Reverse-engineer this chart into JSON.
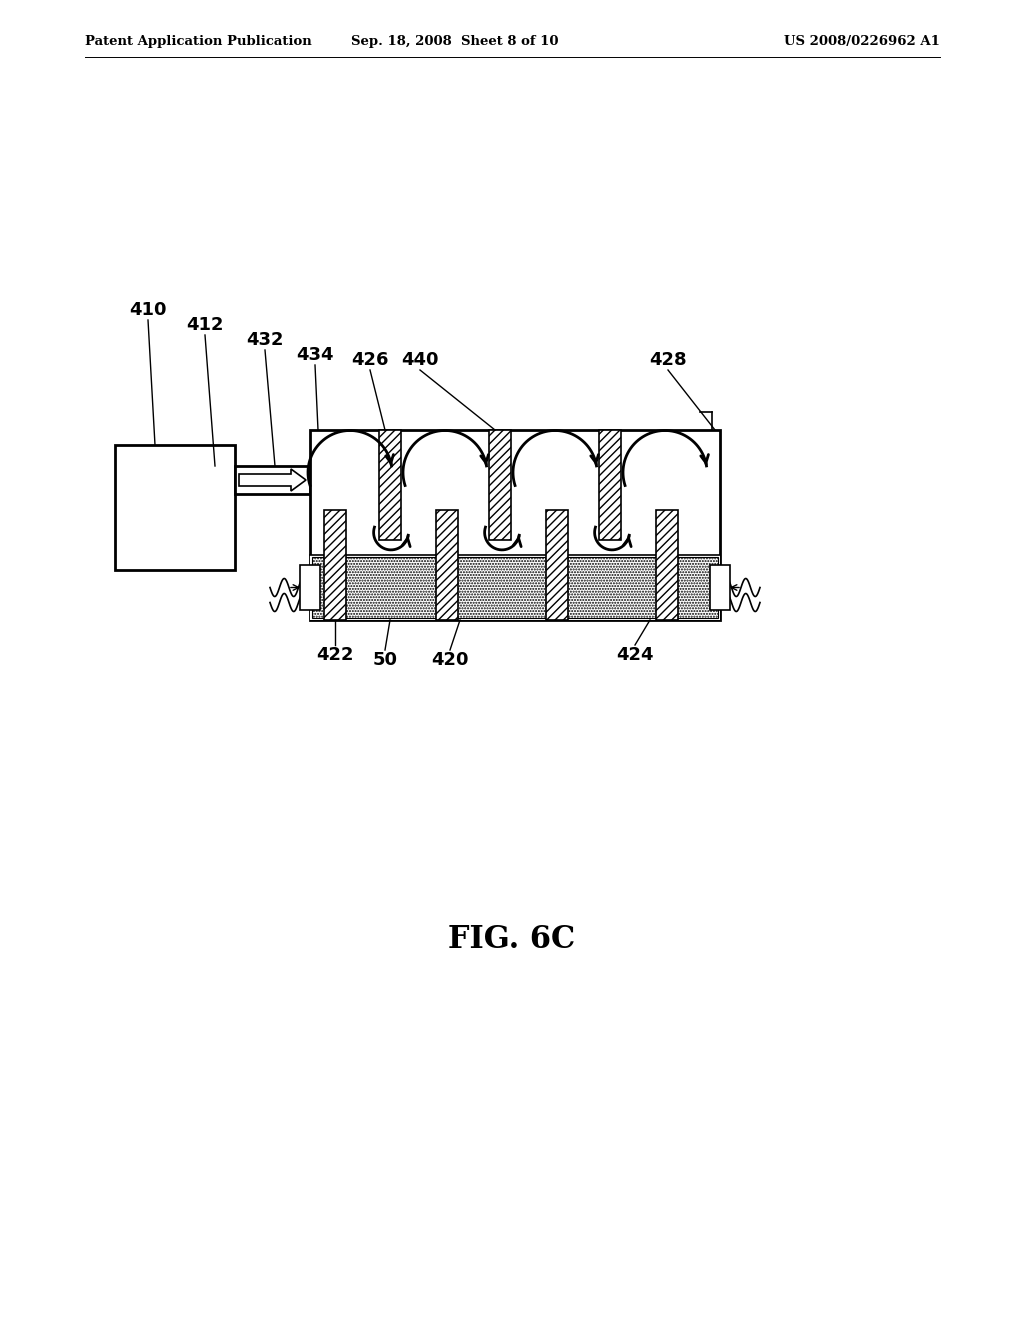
{
  "bg_color": "#ffffff",
  "header_left": "Patent Application Publication",
  "header_mid": "Sep. 18, 2008  Sheet 8 of 10",
  "header_right": "US 2008/0226962 A1",
  "fig_label": "FIG. 6C",
  "lw_main": 2.0,
  "lw_thin": 1.2,
  "lw_med": 1.6
}
